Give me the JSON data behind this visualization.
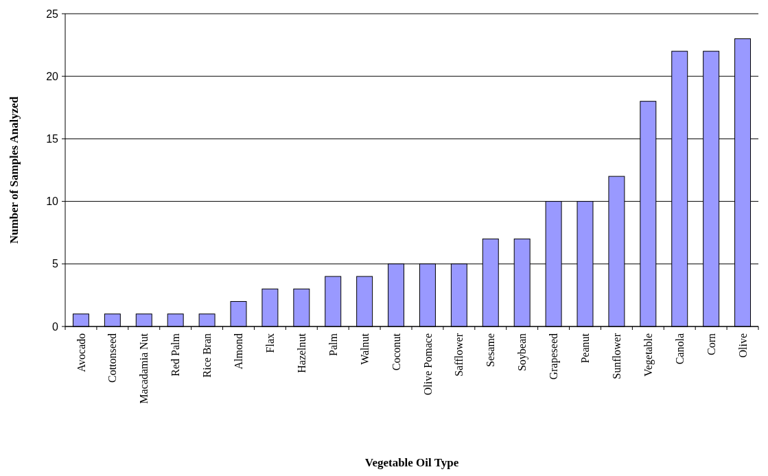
{
  "chart_data": {
    "type": "bar",
    "xlabel": "Vegetable Oil Type",
    "ylabel": "Number of Samples Analyzed",
    "categories": [
      "Avocado",
      "Cottonseed",
      "Macadamia Nut",
      "Red Palm",
      "Rice Bran",
      "Almond",
      "Flax",
      "Hazelnut",
      "Palm",
      "Walnut",
      "Coconut",
      "Olive Pomace",
      "Safflower",
      "Sesame",
      "Soybean",
      "Grapeseed",
      "Peanut",
      "Sunflower",
      "Vegetable",
      "Canola",
      "Corn",
      "Olive"
    ],
    "values": [
      1,
      1,
      1,
      1,
      1,
      2,
      3,
      3,
      4,
      4,
      5,
      5,
      5,
      7,
      7,
      10,
      10,
      12,
      18,
      22,
      22,
      23
    ],
    "color": "#9999ff",
    "ylim": [
      0,
      25
    ],
    "yticks": [
      0,
      5,
      10,
      15,
      20,
      25
    ],
    "grid": "y"
  }
}
